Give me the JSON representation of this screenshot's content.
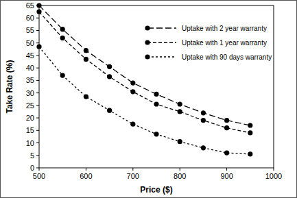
{
  "chart_data": {
    "type": "line",
    "x_label": "Price ($)",
    "y_label": "Take Rate (%)",
    "x": [
      500,
      550,
      600,
      650,
      700,
      750,
      800,
      850,
      900,
      950
    ],
    "series": [
      {
        "name": "Uptake with 2 year warranty",
        "color": "#000000",
        "marker": "circle",
        "line_style": "long-dash",
        "values": [
          65,
          55.5,
          47,
          40.5,
          34,
          29.5,
          25.5,
          22,
          19,
          17
        ]
      },
      {
        "name": "Uptake with 1 year warranty",
        "color": "#000000",
        "marker": "circle",
        "line_style": "dashed",
        "values": [
          62.5,
          52,
          43.5,
          36.5,
          30.5,
          25.5,
          22.5,
          19,
          16,
          14
        ]
      },
      {
        "name": "Uptake with 90 days warranty",
        "color": "#000000",
        "marker": "circle",
        "line_style": "short-dash",
        "values": [
          48.5,
          37,
          28.5,
          23,
          17.5,
          13.5,
          10.5,
          8,
          6,
          5.5
        ]
      }
    ],
    "xlim": [
      500,
      1000
    ],
    "xticks": [
      500,
      600,
      700,
      800,
      900,
      1000
    ],
    "ylim": [
      0,
      65
    ],
    "yticks": [
      0,
      5,
      10,
      15,
      20,
      25,
      30,
      35,
      40,
      45,
      50,
      55,
      60,
      65
    ],
    "grid": false,
    "legend": "upper right"
  }
}
